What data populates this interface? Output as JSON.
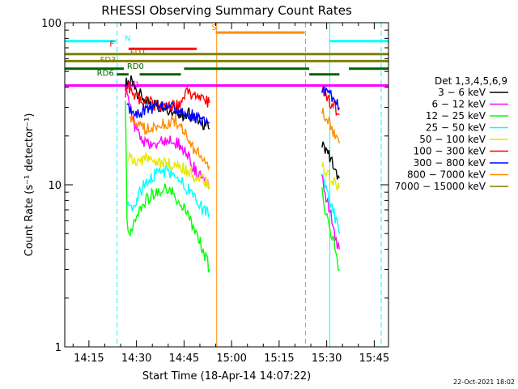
{
  "chart_data": {
    "type": "line",
    "title": "RHESSI Observing Summary Count Rates",
    "xlabel": "Start Time (18-Apr-14 14:07:22)",
    "ylabel": "Count Rate (s⁻¹ detector⁻¹)",
    "ylog": true,
    "ylim": [
      1,
      100
    ],
    "xlim_min": [
      7.37,
      109.5
    ],
    "xticks": [
      {
        "t": 15,
        "label": "14:15"
      },
      {
        "t": 30,
        "label": "14:30"
      },
      {
        "t": 45,
        "label": "14:45"
      },
      {
        "t": 60,
        "label": "15:00"
      },
      {
        "t": 75,
        "label": "15:15"
      },
      {
        "t": 90,
        "label": "15:30"
      },
      {
        "t": 105,
        "label": "15:45"
      }
    ],
    "yticks": [
      {
        "v": 1,
        "label": "1"
      },
      {
        "v": 10,
        "label": "10"
      },
      {
        "v": 100,
        "label": "100"
      }
    ],
    "legend": {
      "title": "Det 1,3,4,5,6,9",
      "placement": "right",
      "entries": [
        {
          "label": "3 − 6 keV",
          "color": "#000000"
        },
        {
          "label": "6 − 12 keV",
          "color": "#ff00ff"
        },
        {
          "label": "12 − 25 keV",
          "color": "#00ff00"
        },
        {
          "label": "25 − 50 keV",
          "color": "#00ffff"
        },
        {
          "label": "50 − 100 keV",
          "color": "#e6e600"
        },
        {
          "label": "100 − 300 keV",
          "color": "#ff0000"
        },
        {
          "label": "300 − 800 keV",
          "color": "#0000ff"
        },
        {
          "label": "800 − 7000 keV",
          "color": "#ff8c00"
        },
        {
          "label": "7000 − 15000 keV",
          "color": "#808000"
        }
      ]
    },
    "series": [
      {
        "name": "3 − 6 keV",
        "color": "#000000",
        "segments": [
          [
            [
              26.5,
              42
            ],
            [
              28,
              44
            ],
            [
              30,
              38
            ],
            [
              33,
              33
            ],
            [
              37,
              31
            ],
            [
              41,
              29
            ],
            [
              44,
              27
            ],
            [
              45,
              27
            ],
            [
              46,
              28
            ],
            [
              48,
              26
            ],
            [
              51,
              24
            ],
            [
              53,
              22
            ]
          ],
          [
            [
              88.5,
              18
            ],
            [
              89.5,
              17
            ],
            [
              91,
              15
            ],
            [
              92,
              13
            ],
            [
              93,
              12
            ],
            [
              94,
              11
            ]
          ]
        ]
      },
      {
        "name": "6 − 12 keV",
        "color": "#ff00ff",
        "segments": [
          [
            [
              26.5,
              39
            ],
            [
              28,
              30
            ],
            [
              30,
              21
            ],
            [
              33,
              18
            ],
            [
              36,
              18
            ],
            [
              40,
              19
            ],
            [
              43,
              18
            ],
            [
              45,
              16
            ],
            [
              47,
              14
            ],
            [
              49,
              12
            ],
            [
              51,
              11
            ],
            [
              53,
              9.5
            ]
          ],
          [
            [
              88.5,
              11
            ],
            [
              89.5,
              9
            ],
            [
              91,
              7
            ],
            [
              92,
              5.5
            ],
            [
              93,
              4.5
            ],
            [
              94,
              4
            ]
          ]
        ]
      },
      {
        "name": "12 − 25 keV",
        "color": "#00ff00",
        "segments": [
          [
            [
              26.5,
              36
            ],
            [
              27,
              6
            ],
            [
              28,
              5
            ],
            [
              30,
              6.5
            ],
            [
              33,
              8
            ],
            [
              36,
              9
            ],
            [
              39,
              9.5
            ],
            [
              41,
              9
            ],
            [
              43,
              8
            ],
            [
              45,
              7
            ],
            [
              47,
              6
            ],
            [
              49,
              5
            ],
            [
              51,
              4
            ],
            [
              53,
              3
            ]
          ],
          [
            [
              88.5,
              9
            ],
            [
              89.5,
              7
            ],
            [
              91,
              5.5
            ],
            [
              92,
              4.5
            ],
            [
              93,
              3.8
            ],
            [
              94,
              3
            ]
          ]
        ]
      },
      {
        "name": "25 − 50 keV",
        "color": "#00ffff",
        "segments": [
          [
            [
              27,
              8
            ],
            [
              29,
              7
            ],
            [
              31,
              9
            ],
            [
              34,
              11
            ],
            [
              37,
              12
            ],
            [
              40,
              12
            ],
            [
              43,
              11
            ],
            [
              45,
              10
            ],
            [
              47,
              9
            ],
            [
              49,
              8
            ],
            [
              51,
              7
            ],
            [
              53,
              6.5
            ]
          ],
          [
            [
              88.5,
              11
            ],
            [
              89.5,
              9.5
            ],
            [
              91,
              8
            ],
            [
              92,
              7
            ],
            [
              93,
              6
            ],
            [
              94,
              5
            ]
          ]
        ]
      },
      {
        "name": "50 − 100 keV",
        "color": "#e6e600",
        "segments": [
          [
            [
              27.5,
              15
            ],
            [
              30,
              14
            ],
            [
              33,
              14.5
            ],
            [
              36,
              14
            ],
            [
              40,
              13.5
            ],
            [
              43,
              13
            ],
            [
              45,
              12.5
            ],
            [
              47,
              12
            ],
            [
              49,
              11
            ],
            [
              51,
              10.5
            ],
            [
              53,
              10
            ]
          ],
          [
            [
              88.5,
              14
            ],
            [
              89.5,
              12
            ],
            [
              91,
              11
            ],
            [
              92,
              10.5
            ],
            [
              93,
              10
            ],
            [
              94,
              9.5
            ]
          ]
        ]
      },
      {
        "name": "100 − 300 keV",
        "color": "#ff0000",
        "segments": [
          [
            [
              26.5,
              36
            ],
            [
              27.5,
              40
            ],
            [
              30,
              35
            ],
            [
              32,
              33
            ],
            [
              36,
              31
            ],
            [
              40,
              30
            ],
            [
              44,
              31
            ],
            [
              46,
              38
            ],
            [
              47,
              35
            ],
            [
              49,
              34
            ],
            [
              51,
              33
            ],
            [
              53,
              32
            ]
          ],
          [
            [
              88.5,
              38
            ],
            [
              89.5,
              35
            ],
            [
              91,
              33
            ],
            [
              92,
              31
            ],
            [
              93,
              29
            ],
            [
              94,
              27
            ]
          ]
        ]
      },
      {
        "name": "300 − 800 keV",
        "color": "#0000ff",
        "segments": [
          [
            [
              27,
              30
            ],
            [
              29,
              27
            ],
            [
              31,
              28
            ],
            [
              34,
              30
            ],
            [
              37,
              30
            ],
            [
              40,
              30
            ],
            [
              43,
              29
            ],
            [
              45,
              28
            ],
            [
              47,
              27
            ],
            [
              49,
              26
            ],
            [
              51,
              25
            ],
            [
              53,
              24
            ]
          ],
          [
            [
              88.5,
              40
            ],
            [
              89.5,
              38
            ],
            [
              91,
              36
            ],
            [
              92,
              34
            ],
            [
              93,
              32
            ],
            [
              94,
              30
            ]
          ]
        ]
      },
      {
        "name": "800 − 7000 keV",
        "color": "#ff8c00",
        "segments": [
          [
            [
              28,
              26
            ],
            [
              30,
              24
            ],
            [
              33,
              22
            ],
            [
              36,
              22
            ],
            [
              39,
              24
            ],
            [
              42,
              25
            ],
            [
              44,
              23
            ],
            [
              46,
              20
            ],
            [
              48,
              17
            ],
            [
              50,
              15
            ],
            [
              52,
              13.5
            ],
            [
              53,
              13
            ]
          ],
          [
            [
              88.5,
              30
            ],
            [
              89.5,
              27
            ],
            [
              91,
              24
            ],
            [
              92,
              21
            ],
            [
              93,
              19
            ],
            [
              94,
              18
            ]
          ]
        ]
      },
      {
        "name": "7000 − 15000 keV",
        "color": "#808000",
        "segments": []
      }
    ],
    "flag_bars": [
      {
        "label": "N",
        "color": "#00ffff",
        "y": 77,
        "segments": [
          [
            7.4,
            23.5
          ],
          [
            91,
            109.5
          ]
        ]
      },
      {
        "label": "F",
        "color": "#ff0000",
        "y": 69,
        "segments": [
          [
            27.5,
            49
          ]
        ]
      },
      {
        "label": "FD1",
        "color": "#808000",
        "y": 64,
        "segments": [
          [
            7.4,
            109.5
          ]
        ]
      },
      {
        "label": "FD3",
        "color": "#808000",
        "y": 58,
        "segments": [
          [
            7.4,
            109.5
          ]
        ]
      },
      {
        "label": "RD0",
        "color": "#006400",
        "y": 52,
        "segments": [
          [
            7.4,
            26
          ],
          [
            45,
            84.5
          ],
          [
            97,
            109.5
          ]
        ]
      },
      {
        "label": "RD6",
        "color": "#006400",
        "y": 48,
        "segments": [
          [
            23.8,
            27.5
          ],
          [
            31,
            44
          ],
          [
            84.5,
            94
          ]
        ]
      },
      {
        "label": "D1",
        "color": "#ff00ff",
        "y": 41,
        "segments": [
          [
            7.4,
            109.5
          ]
        ]
      },
      {
        "label": "S",
        "color": "#ff8c00",
        "y": 87,
        "segments": [
          [
            55,
            83
          ]
        ]
      }
    ],
    "vlines": [
      {
        "t": 7.4,
        "color": "#00ffff",
        "style": "solid"
      },
      {
        "t": 23.9,
        "color": "#00ffff",
        "style": "dashed"
      },
      {
        "t": 55.3,
        "color": "#ff8c00",
        "style": "solid"
      },
      {
        "t": 83.3,
        "color": "#ff8c00",
        "style": "dashed"
      },
      {
        "t": 91.0,
        "color": "#00ffff",
        "style": "solid"
      },
      {
        "t": 107.2,
        "color": "#00ffff",
        "style": "dashed"
      }
    ],
    "flag_labels": [
      {
        "text": "N",
        "color": "#00ffff",
        "t": 26.3,
        "y": 77
      },
      {
        "text": "F",
        "color": "#ff0000",
        "t": 21.5,
        "y": 71
      },
      {
        "text": "FD1",
        "color": "#808000",
        "t": 28,
        "y": 63
      },
      {
        "text": "FD3",
        "color": "#808000",
        "t": 18.5,
        "y": 57
      },
      {
        "text": "RD0",
        "color": "#006400",
        "t": 27,
        "y": 52
      },
      {
        "text": "RD6",
        "color": "#006400",
        "t": 17.5,
        "y": 47
      },
      {
        "text": "D1",
        "color": "#ff00ff",
        "t": 27.5,
        "y": 40
      },
      {
        "text": "S",
        "color": "#ff8c00",
        "t": 53.7,
        "y": 90
      }
    ]
  },
  "footer": {
    "date_stamp": "22-Oct-2021 18:02"
  }
}
